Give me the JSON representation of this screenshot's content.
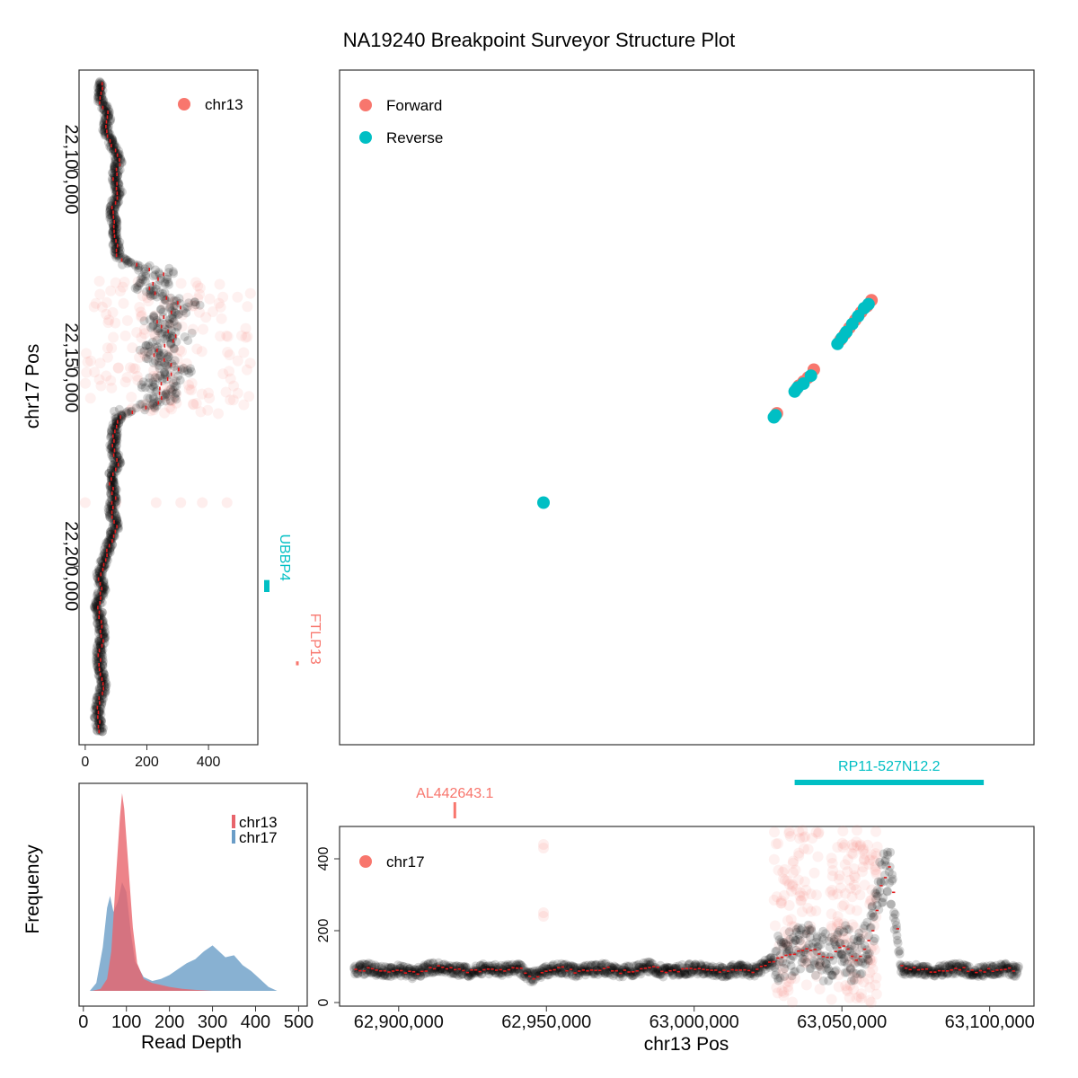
{
  "figure": {
    "title": "NA19240 Breakpoint Surveyor Structure Plot"
  },
  "colors": {
    "forward": "#F8766D",
    "reverse": "#00BFC4",
    "chr13_density": "#E8646B",
    "chr17_density": "#6A9DC7",
    "depth_points": "#000000",
    "depth_line": "#E41A1C"
  },
  "chart_data": [
    {
      "id": "structure",
      "type": "scatter",
      "xlabel": "chr13 Pos",
      "ylabel": "chr17 Pos",
      "xlim": [
        62880000,
        63115000
      ],
      "ylim": [
        22075000,
        22245000
      ],
      "legend": {
        "position": "top-left",
        "entries": [
          "Forward",
          "Reverse"
        ]
      },
      "series": [
        {
          "name": "Forward",
          "points": [
            [
              63027500,
              22162000
            ],
            [
              63028000,
              22161500
            ],
            [
              63034500,
              22155500
            ],
            [
              63035500,
              22154500
            ],
            [
              63037000,
              22153500
            ],
            [
              63038500,
              22152500
            ],
            [
              63040500,
              22150500
            ],
            [
              63049500,
              22143000
            ],
            [
              63051000,
              22141500
            ],
            [
              63052500,
              22140000
            ],
            [
              63054500,
              22138000
            ],
            [
              63056500,
              22136000
            ],
            [
              63058500,
              22134500
            ],
            [
              63060000,
              22133000
            ]
          ]
        },
        {
          "name": "Reverse",
          "points": [
            [
              62949000,
              22184000
            ],
            [
              63027000,
              22162500
            ],
            [
              63027500,
              22162000
            ],
            [
              63034000,
              22156000
            ],
            [
              63035000,
              22155000
            ],
            [
              63037000,
              22154000
            ],
            [
              63039500,
              22152000
            ],
            [
              63048500,
              22144000
            ],
            [
              63050000,
              22142500
            ],
            [
              63051500,
              22141000
            ],
            [
              63053500,
              22139000
            ],
            [
              63055500,
              22137000
            ],
            [
              63057500,
              22135000
            ],
            [
              63059000,
              22134000
            ]
          ]
        }
      ]
    },
    {
      "id": "chr17-depth",
      "type": "scatter",
      "xlabel": "",
      "ylabel": "",
      "xlim": [
        -20,
        560
      ],
      "ylim": [
        22075000,
        22245000
      ],
      "x_ticks": [
        0,
        200,
        400
      ],
      "y_ticks": [
        22100000,
        22150000,
        22200000
      ],
      "y_tick_labels": [
        "22,100,000",
        "22,150,000",
        "22,200,000"
      ],
      "legend": {
        "position": "top-right",
        "entries": [
          "chr13"
        ]
      },
      "depth_profile": [
        [
          22078000,
          55
        ],
        [
          22082000,
          45
        ],
        [
          22086000,
          75
        ],
        [
          22090000,
          65
        ],
        [
          22094000,
          90
        ],
        [
          22098000,
          110
        ],
        [
          22102000,
          95
        ],
        [
          22106000,
          110
        ],
        [
          22110000,
          85
        ],
        [
          22114000,
          95
        ],
        [
          22118000,
          100
        ],
        [
          22122000,
          105
        ],
        [
          22126000,
          250
        ],
        [
          22130000,
          200
        ],
        [
          22134000,
          320
        ],
        [
          22138000,
          230
        ],
        [
          22142000,
          300
        ],
        [
          22146000,
          220
        ],
        [
          22150000,
          300
        ],
        [
          22154000,
          240
        ],
        [
          22158000,
          250
        ],
        [
          22162000,
          110
        ],
        [
          22166000,
          95
        ],
        [
          22170000,
          90
        ],
        [
          22174000,
          105
        ],
        [
          22178000,
          80
        ],
        [
          22182000,
          95
        ],
        [
          22186000,
          85
        ],
        [
          22190000,
          100
        ],
        [
          22194000,
          80
        ],
        [
          22198000,
          65
        ],
        [
          22202000,
          45
        ],
        [
          22206000,
          55
        ],
        [
          22210000,
          40
        ],
        [
          22214000,
          50
        ],
        [
          22218000,
          55
        ],
        [
          22222000,
          45
        ],
        [
          22226000,
          50
        ],
        [
          22230000,
          60
        ],
        [
          22234000,
          45
        ],
        [
          22238000,
          40
        ],
        [
          22242000,
          50
        ]
      ],
      "genes": [
        {
          "name": "UBBP4",
          "start": 22203500,
          "end": 22206500,
          "strand": "reverse"
        },
        {
          "name": "FTLP13",
          "start": 22224000,
          "end": 22225000,
          "strand": "forward"
        }
      ]
    },
    {
      "id": "chr13-depth",
      "type": "scatter",
      "xlabel": "chr13 Pos",
      "ylabel": "",
      "xlim": [
        62880000,
        63115000
      ],
      "ylim": [
        -10,
        490
      ],
      "x_ticks": [
        62900000,
        62950000,
        63000000,
        63050000,
        63100000
      ],
      "x_tick_labels": [
        "62,900,000",
        "62,950,000",
        "63,000,000",
        "63,050,000",
        "63,100,000"
      ],
      "y_ticks": [
        0,
        200,
        400
      ],
      "legend": {
        "position": "top-left",
        "entries": [
          "chr17"
        ]
      },
      "depth_profile": [
        [
          62885000,
          90
        ],
        [
          62890000,
          95
        ],
        [
          62895000,
          85
        ],
        [
          62900000,
          90
        ],
        [
          62905000,
          80
        ],
        [
          62910000,
          95
        ],
        [
          62915000,
          100
        ],
        [
          62920000,
          90
        ],
        [
          62925000,
          85
        ],
        [
          62930000,
          95
        ],
        [
          62935000,
          90
        ],
        [
          62940000,
          100
        ],
        [
          62945000,
          70
        ],
        [
          62950000,
          90
        ],
        [
          62955000,
          95
        ],
        [
          62960000,
          85
        ],
        [
          62965000,
          90
        ],
        [
          62970000,
          95
        ],
        [
          62975000,
          85
        ],
        [
          62980000,
          90
        ],
        [
          62985000,
          100
        ],
        [
          62990000,
          85
        ],
        [
          62995000,
          90
        ],
        [
          63000000,
          95
        ],
        [
          63005000,
          90
        ],
        [
          63010000,
          85
        ],
        [
          63015000,
          95
        ],
        [
          63020000,
          85
        ],
        [
          63025000,
          110
        ],
        [
          63030000,
          130
        ],
        [
          63035000,
          140
        ],
        [
          63040000,
          150
        ],
        [
          63045000,
          120
        ],
        [
          63050000,
          160
        ],
        [
          63055000,
          110
        ],
        [
          63060000,
          200
        ],
        [
          63063000,
          330
        ],
        [
          63066000,
          380
        ],
        [
          63070000,
          90
        ],
        [
          63075000,
          95
        ],
        [
          63080000,
          85
        ],
        [
          63085000,
          90
        ],
        [
          63090000,
          95
        ],
        [
          63095000,
          85
        ],
        [
          63100000,
          90
        ],
        [
          63105000,
          95
        ],
        [
          63110000,
          85
        ]
      ],
      "genes": [
        {
          "name": "AL442643.1",
          "start": 62919000,
          "end": 62919500,
          "strand": "forward"
        },
        {
          "name": "RP11-527N12.2",
          "start": 63034000,
          "end": 63098000,
          "strand": "reverse"
        }
      ]
    },
    {
      "id": "read-depth-density",
      "type": "area",
      "xlabel": "Read Depth",
      "ylabel": "Frequency",
      "xlim": [
        -10,
        520
      ],
      "x_ticks": [
        0,
        100,
        200,
        300,
        400,
        500
      ],
      "legend": {
        "position": "top-right",
        "entries": [
          "chr13",
          "chr17"
        ]
      },
      "series": [
        {
          "name": "chr13",
          "points": [
            [
              20,
              0
            ],
            [
              40,
              0.01
            ],
            [
              55,
              0.06
            ],
            [
              65,
              0.2
            ],
            [
              75,
              0.55
            ],
            [
              85,
              0.88
            ],
            [
              90,
              1.0
            ],
            [
              95,
              0.92
            ],
            [
              105,
              0.62
            ],
            [
              115,
              0.32
            ],
            [
              125,
              0.14
            ],
            [
              140,
              0.06
            ],
            [
              160,
              0.04
            ],
            [
              180,
              0.03
            ],
            [
              200,
              0.02
            ],
            [
              230,
              0.01
            ],
            [
              260,
              0.005
            ],
            [
              300,
              0
            ]
          ]
        },
        {
          "name": "chr17",
          "points": [
            [
              15,
              0
            ],
            [
              30,
              0.04
            ],
            [
              45,
              0.22
            ],
            [
              55,
              0.42
            ],
            [
              62,
              0.48
            ],
            [
              70,
              0.4
            ],
            [
              80,
              0.45
            ],
            [
              90,
              0.55
            ],
            [
              100,
              0.5
            ],
            [
              110,
              0.3
            ],
            [
              120,
              0.15
            ],
            [
              140,
              0.07
            ],
            [
              160,
              0.05
            ],
            [
              180,
              0.06
            ],
            [
              200,
              0.08
            ],
            [
              220,
              0.11
            ],
            [
              240,
              0.14
            ],
            [
              260,
              0.16
            ],
            [
              280,
              0.2
            ],
            [
              300,
              0.23
            ],
            [
              315,
              0.2
            ],
            [
              330,
              0.17
            ],
            [
              350,
              0.18
            ],
            [
              370,
              0.13
            ],
            [
              390,
              0.1
            ],
            [
              410,
              0.06
            ],
            [
              430,
              0.02
            ],
            [
              450,
              0
            ]
          ]
        }
      ]
    }
  ]
}
